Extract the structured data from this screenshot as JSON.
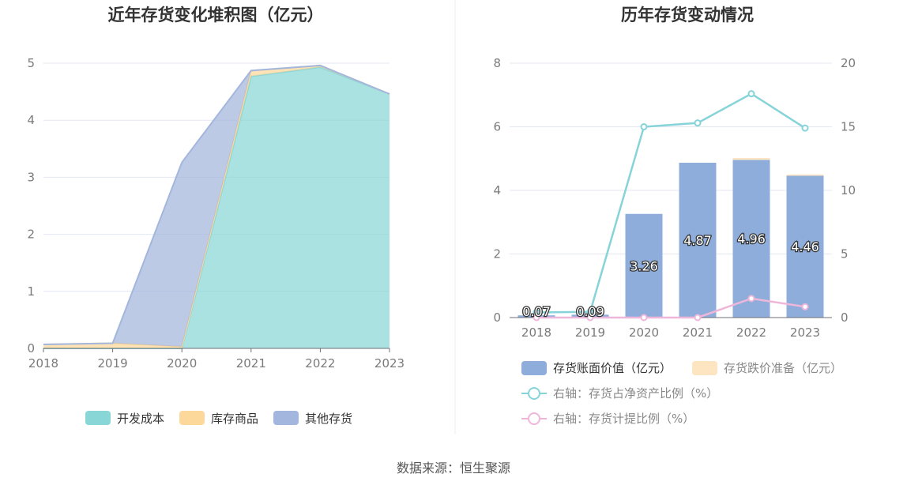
{
  "source_text": "数据来源：恒生聚源",
  "chart_data": [
    {
      "type": "area",
      "stacked": true,
      "title": "近年存货变化堆积图（亿元）",
      "x": [
        "2018",
        "2019",
        "2020",
        "2021",
        "2022",
        "2023"
      ],
      "ylim": [
        0,
        5
      ],
      "yticks": [
        "0",
        "1",
        "2",
        "3",
        "4",
        "5"
      ],
      "grid": true,
      "legend_position": "bottom",
      "series": [
        {
          "name": "开发成本",
          "color": "#89d6d6",
          "values": [
            0,
            0,
            0,
            4.77,
            4.93,
            4.46
          ]
        },
        {
          "name": "库存商品",
          "color": "#fdd89b",
          "values": [
            0.07,
            0.09,
            0.03,
            0.1,
            0.03,
            0
          ]
        },
        {
          "name": "其他存货",
          "color": "#a3b6dd",
          "values": [
            0,
            0,
            3.23,
            0,
            0,
            0
          ]
        }
      ]
    },
    {
      "type": "bar",
      "title": "历年存货变动情况",
      "categories": [
        "2018",
        "2019",
        "2020",
        "2021",
        "2022",
        "2023"
      ],
      "ylim": [
        0,
        8
      ],
      "yticks": [
        "0",
        "2",
        "4",
        "6",
        "8"
      ],
      "y2lim": [
        0,
        20
      ],
      "y2ticks": [
        "0",
        "5",
        "10",
        "15",
        "20"
      ],
      "grid": true,
      "legend_position": "bottom",
      "bars": [
        {
          "name": "存货账面价值（亿元）",
          "color": "#8eaddb",
          "values": [
            0.07,
            0.09,
            3.26,
            4.87,
            4.96,
            4.46
          ],
          "labels": [
            "0.07",
            "0.09",
            "3.26",
            "4.87",
            "4.96",
            "4.46"
          ]
        },
        {
          "name": "存货跌价准备（亿元）",
          "color": "#fde5c2",
          "values": [
            0,
            0,
            0,
            0,
            0.06,
            0.04
          ]
        }
      ],
      "lines": [
        {
          "name": "右轴：存货占净资产比例（%）",
          "color": "#86d3da",
          "axis": "right",
          "values": [
            0.4,
            0.45,
            15.0,
            15.3,
            17.6,
            14.9
          ]
        },
        {
          "name": "右轴：存货计提比例（%）",
          "color": "#eeb7da",
          "axis": "right",
          "values": [
            0,
            0,
            0,
            0,
            1.5,
            0.85
          ]
        }
      ]
    }
  ]
}
